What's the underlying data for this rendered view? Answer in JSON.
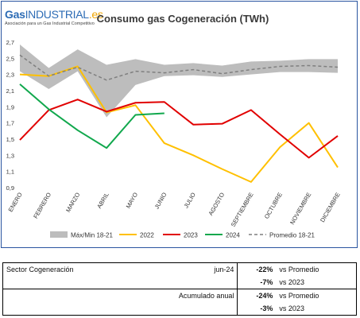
{
  "logo": {
    "gas": "Gas",
    "industrial": "INDUSTRIAL",
    "es": ".es",
    "tagline": "Asociación para un Gas Industrial Competitivo"
  },
  "chart_data": {
    "type": "line",
    "title": "Consumo gas Cogeneración (TWh)",
    "categories": [
      "ENERO",
      "FEBRERO",
      "MARZO",
      "ABRIL",
      "MAYO",
      "JUNIO",
      "JULIO",
      "AGOSTO",
      "SEPTIEMBRE",
      "OCTUBRE",
      "NOVIEMBRE",
      "DICIEMBRE"
    ],
    "ylim": [
      0.9,
      2.7
    ],
    "yticks": [
      "0,9",
      "1,1",
      "1,3",
      "1,5",
      "1,7",
      "1,9",
      "2,1",
      "2,3",
      "2,5",
      "2,7"
    ],
    "band": {
      "name": "Máx/Min 18-21",
      "color": "#bdbdbd",
      "max": [
        2.67,
        2.38,
        2.61,
        2.42,
        2.49,
        2.42,
        2.44,
        2.41,
        2.46,
        2.47,
        2.49,
        2.49
      ],
      "min": [
        2.34,
        2.12,
        2.34,
        1.77,
        2.17,
        2.28,
        2.29,
        2.27,
        2.3,
        2.33,
        2.33,
        2.32
      ]
    },
    "series": [
      {
        "name": "2022",
        "color": "#ffc000",
        "values": [
          2.3,
          2.28,
          2.4,
          1.83,
          1.92,
          1.45,
          1.3,
          1.13,
          0.97,
          1.4,
          1.7,
          1.15
        ]
      },
      {
        "name": "2023",
        "color": "#e10000",
        "values": [
          1.49,
          1.86,
          1.99,
          1.84,
          1.95,
          1.96,
          1.68,
          1.69,
          1.86,
          1.56,
          1.27,
          1.54
        ]
      },
      {
        "name": "2024",
        "color": "#11a84d",
        "values": [
          2.18,
          1.87,
          1.61,
          1.39,
          1.8,
          1.82,
          null,
          null,
          null,
          null,
          null,
          null
        ]
      },
      {
        "name": "Promedio 18-21",
        "color": "#7f7f7f",
        "dashed": true,
        "values": [
          2.54,
          2.28,
          2.39,
          2.23,
          2.34,
          2.32,
          2.36,
          2.31,
          2.36,
          2.4,
          2.41,
          2.39
        ]
      }
    ]
  },
  "table": {
    "sector_label": "Sector Cogeneración",
    "period": "jun-24",
    "accum_label": "Acumulado anual",
    "rows": [
      {
        "pct": "-22%",
        "vs": "vs Promedio"
      },
      {
        "pct": "-7%",
        "vs": "vs 2023"
      },
      {
        "pct": "-24%",
        "vs": "vs Promedio"
      },
      {
        "pct": "-3%",
        "vs": "vs 2023"
      }
    ]
  }
}
